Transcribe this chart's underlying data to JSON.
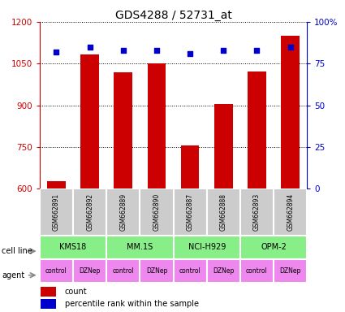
{
  "title": "GDS4288 / 52731_at",
  "samples": [
    "GSM662891",
    "GSM662892",
    "GSM662889",
    "GSM662890",
    "GSM662887",
    "GSM662888",
    "GSM662893",
    "GSM662894"
  ],
  "bar_values": [
    627,
    1082,
    1020,
    1052,
    755,
    905,
    1022,
    1150
  ],
  "percentile_values": [
    82,
    85,
    83,
    83,
    81,
    83,
    83,
    85
  ],
  "bar_color": "#cc0000",
  "dot_color": "#0000cc",
  "ylim_left": [
    600,
    1200
  ],
  "ylim_right": [
    0,
    100
  ],
  "yticks_left": [
    600,
    750,
    900,
    1050,
    1200
  ],
  "yticks_right": [
    0,
    25,
    50,
    75,
    100
  ],
  "yticklabels_right": [
    "0",
    "25",
    "50",
    "75",
    "100%"
  ],
  "cell_lines": [
    "KMS18",
    "MM.1S",
    "NCI-H929",
    "OPM-2"
  ],
  "cell_line_spans": [
    [
      0,
      2
    ],
    [
      2,
      4
    ],
    [
      4,
      6
    ],
    [
      6,
      8
    ]
  ],
  "cell_line_color": "#88ee88",
  "agents": [
    "control",
    "DZNep",
    "control",
    "DZNep",
    "control",
    "DZNep",
    "control",
    "DZNep"
  ],
  "agent_color": "#ee88ee",
  "sample_bg_color": "#cccccc",
  "legend_count_color": "#cc0000",
  "legend_dot_color": "#0000cc"
}
